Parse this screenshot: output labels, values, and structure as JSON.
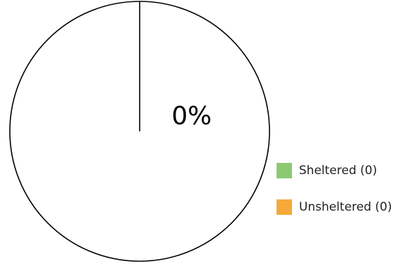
{
  "chart_data": {
    "type": "pie",
    "categories": [
      "Sheltered (0)",
      "Unsheltered (0)"
    ],
    "values": [
      0,
      0
    ],
    "center_label": "0%",
    "colors": [
      "#8dc971",
      "#f6a93b"
    ],
    "legend_position": "bottom-right"
  }
}
